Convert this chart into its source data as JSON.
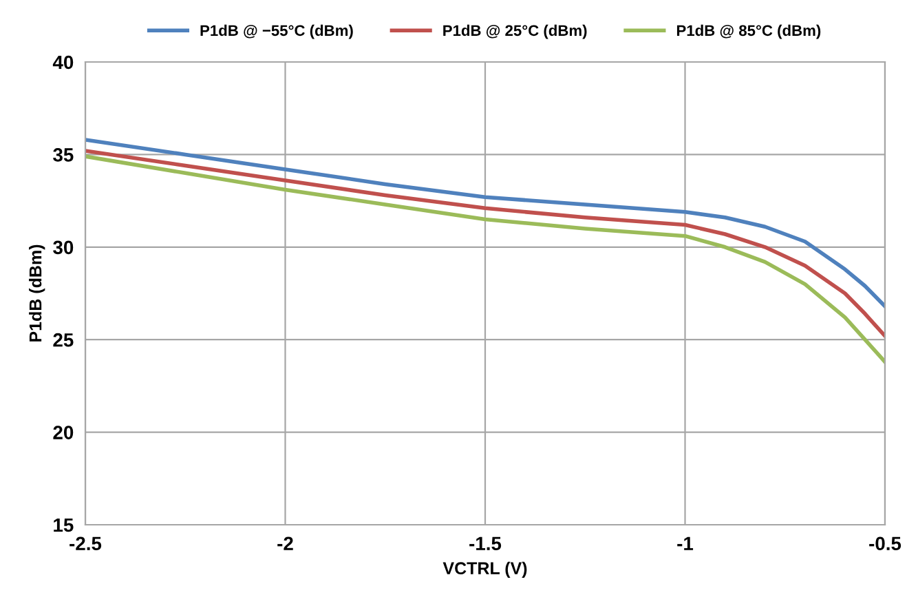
{
  "chart_data": {
    "type": "line",
    "xlabel": "VCTRL (V)",
    "ylabel": "P1dB (dBm)",
    "x": [
      -2.5,
      -2.25,
      -2.0,
      -1.75,
      -1.5,
      -1.25,
      -1.0,
      -0.9,
      -0.8,
      -0.7,
      -0.6,
      -0.55,
      -0.5
    ],
    "series": [
      {
        "name": "P1dB @ −55°C (dBm)",
        "color": "#4f81bd",
        "values": [
          35.8,
          35.0,
          34.2,
          33.4,
          32.7,
          32.3,
          31.9,
          31.6,
          31.1,
          30.3,
          28.8,
          27.9,
          26.8
        ]
      },
      {
        "name": "P1dB @ 25°C (dBm)",
        "color": "#c0504d",
        "values": [
          35.2,
          34.4,
          33.6,
          32.8,
          32.1,
          31.6,
          31.2,
          30.7,
          30.0,
          29.0,
          27.5,
          26.4,
          25.2
        ]
      },
      {
        "name": "P1dB @ 85°C (dBm)",
        "color": "#9bbb59",
        "values": [
          34.9,
          34.0,
          33.1,
          32.3,
          31.5,
          31.0,
          30.6,
          30.0,
          29.2,
          28.0,
          26.2,
          25.0,
          23.8
        ]
      }
    ],
    "xlim": [
      -2.5,
      -0.5
    ],
    "xticks": [
      -2.5,
      -2,
      -1.5,
      -1,
      -0.5
    ],
    "ylim": [
      15,
      40
    ],
    "yticks": [
      15,
      20,
      25,
      30,
      35,
      40
    ],
    "grid": true,
    "legend": "top",
    "marker": "none",
    "line_style": "solid"
  }
}
